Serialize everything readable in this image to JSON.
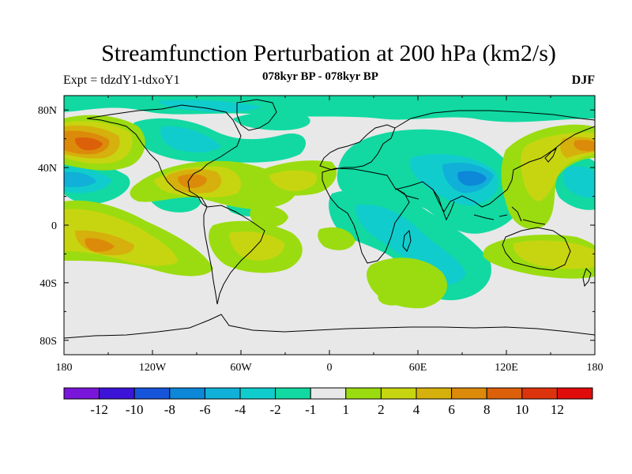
{
  "header": {
    "title": "Streamfunction Perturbation at 200 hPa (km2/s)",
    "experiment": "Expt = tdzdY1-tdxoY1",
    "period": "078kyr BP - 078kyr BP",
    "season": "DJF"
  },
  "axes": {
    "lat_labels": [
      "80N",
      "40N",
      "0",
      "40S",
      "80S"
    ],
    "lat_values": [
      80,
      40,
      0,
      -40,
      -80
    ],
    "lon_labels": [
      "180",
      "120W",
      "60W",
      "0",
      "60E",
      "120E",
      "180"
    ],
    "lon_values": [
      -180,
      -120,
      -60,
      0,
      60,
      120,
      180
    ],
    "lat_range": [
      -90,
      90
    ],
    "lon_range": [
      -180,
      180
    ]
  },
  "colorbar": {
    "colors": [
      "#7a16d9",
      "#3c14d8",
      "#1655d9",
      "#0d87d8",
      "#10b0d8",
      "#11cccc",
      "#11d9a1",
      "#e8e8e8",
      "#9bdc10",
      "#c7d510",
      "#d6b00c",
      "#dc8a0a",
      "#dc600a",
      "#dc330c",
      "#e00c0c"
    ],
    "labels": [
      "-12",
      "-10",
      "-8",
      "-6",
      "-4",
      "-2",
      "-1",
      "1",
      "2",
      "4",
      "6",
      "8",
      "10",
      "12"
    ],
    "levels": [
      -12,
      -10,
      -8,
      -6,
      -4,
      -2,
      -1,
      1,
      2,
      4,
      6,
      8,
      10,
      12
    ]
  },
  "colors": {
    "neutral_fill": "#e8e8e8",
    "coastline": "#000000"
  }
}
